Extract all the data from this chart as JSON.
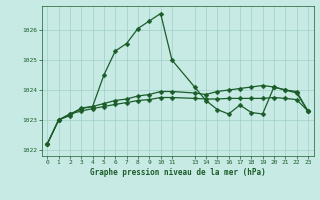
{
  "title": "Graphe pression niveau de la mer (hPa)",
  "bg_color": "#c8eae4",
  "grid_color": "#a0cec8",
  "line_color": "#1a5c2a",
  "ylim": [
    1021.8,
    1026.8
  ],
  "yticks": [
    1022,
    1023,
    1024,
    1025,
    1026
  ],
  "xtick_labels": [
    "0",
    "1",
    "2",
    "3",
    "4",
    "5",
    "6",
    "7",
    "8",
    "9",
    "1011",
    "",
    "1314",
    "1516",
    "1718",
    "1920",
    "2122",
    "23"
  ],
  "line1_x": [
    0,
    1,
    2,
    3,
    4,
    5,
    6,
    7,
    8,
    9,
    10,
    11,
    13,
    14,
    15,
    16,
    17,
    18,
    19,
    20,
    21,
    22,
    23
  ],
  "line1_y": [
    1022.2,
    1023.0,
    1023.15,
    1023.4,
    1023.45,
    1024.5,
    1025.3,
    1025.55,
    1026.05,
    1026.3,
    1026.55,
    1025.0,
    1024.1,
    1023.65,
    1023.35,
    1023.2,
    1023.5,
    1023.25,
    1023.2,
    1024.1,
    1024.0,
    1023.95,
    1023.3
  ],
  "line2_x": [
    0,
    1,
    2,
    3,
    4,
    5,
    6,
    7,
    8,
    9,
    10,
    11,
    13,
    14,
    15,
    16,
    17,
    18,
    19,
    20,
    21,
    22,
    23
  ],
  "line2_y": [
    1022.2,
    1023.0,
    1023.2,
    1023.38,
    1023.45,
    1023.55,
    1023.65,
    1023.7,
    1023.8,
    1023.85,
    1023.95,
    1023.95,
    1023.9,
    1023.85,
    1023.95,
    1024.0,
    1024.05,
    1024.1,
    1024.15,
    1024.1,
    1024.0,
    1023.9,
    1023.3
  ],
  "line3_x": [
    0,
    1,
    2,
    3,
    4,
    5,
    6,
    7,
    8,
    9,
    10,
    11,
    13,
    14,
    15,
    16,
    17,
    18,
    19,
    20,
    21,
    22,
    23
  ],
  "line3_y": [
    1022.2,
    1023.0,
    1023.2,
    1023.3,
    1023.38,
    1023.45,
    1023.52,
    1023.58,
    1023.65,
    1023.68,
    1023.75,
    1023.75,
    1023.72,
    1023.7,
    1023.7,
    1023.72,
    1023.72,
    1023.72,
    1023.72,
    1023.75,
    1023.72,
    1023.68,
    1023.3
  ]
}
